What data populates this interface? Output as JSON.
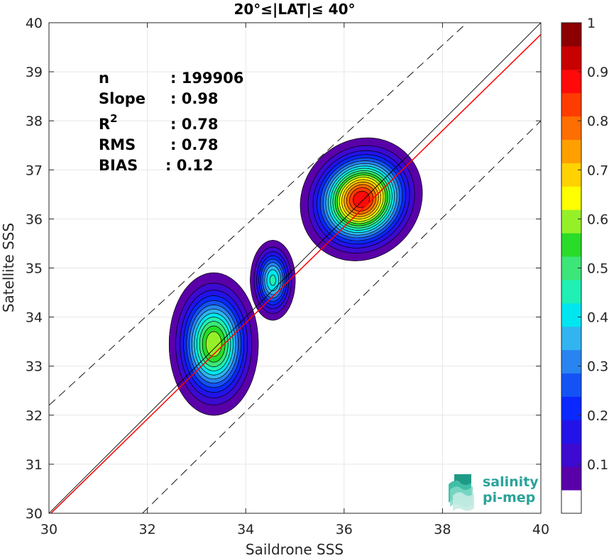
{
  "chart_data": {
    "type": "heatmap",
    "title": "20°≤|LAT|≤ 40°",
    "xlabel": "Saildrone SSS",
    "ylabel": "Satellite SSS",
    "xlim": [
      30,
      40
    ],
    "ylim": [
      30,
      40
    ],
    "xticks": [
      "30",
      "32",
      "34",
      "36",
      "38",
      "40"
    ],
    "yticks": [
      "30",
      "31",
      "32",
      "33",
      "34",
      "35",
      "36",
      "37",
      "38",
      "39",
      "40"
    ],
    "grid": true,
    "stats": [
      {
        "label": "n",
        "value": ": 199906"
      },
      {
        "label": "Slope",
        "value": ": 0.98"
      },
      {
        "label": "R",
        "sup": "2",
        "value": ": 0.78"
      },
      {
        "label": "RMS",
        "value": ": 0.78"
      },
      {
        "label": "BIAS",
        "value": ": 0.12"
      }
    ],
    "lines": [
      {
        "name": "identity",
        "color": "#000000",
        "style": "solid",
        "points": [
          [
            30,
            30
          ],
          [
            40,
            40
          ]
        ]
      },
      {
        "name": "regression",
        "color": "#ff0000",
        "style": "solid",
        "points": [
          [
            30,
            29.96
          ],
          [
            40,
            39.76
          ]
        ]
      },
      {
        "name": "upper-bound",
        "color": "#000000",
        "style": "dashed",
        "points": [
          [
            30,
            32.2
          ],
          [
            38.5,
            40.0
          ]
        ]
      },
      {
        "name": "lower-bound",
        "color": "#000000",
        "style": "dashed",
        "points": [
          [
            31.9,
            30.0
          ],
          [
            40,
            38.0
          ]
        ]
      }
    ],
    "clusters": [
      {
        "name": "low",
        "cx": 33.35,
        "cy": 33.45,
        "rx": 0.78,
        "ry": 1.25,
        "rot": 0,
        "peak": 0.65
      },
      {
        "name": "mid",
        "cx": 34.55,
        "cy": 34.75,
        "rx": 0.42,
        "ry": 0.75,
        "rot": 0,
        "peak": 0.47
      },
      {
        "name": "high",
        "cx": 36.35,
        "cy": 36.4,
        "rx": 0.95,
        "ry": 1.05,
        "rot": -42,
        "peak": 0.95
      }
    ],
    "levels": [
      0.05,
      0.1,
      0.15,
      0.2,
      0.25,
      0.3,
      0.35,
      0.4,
      0.45,
      0.5,
      0.55,
      0.6,
      0.65,
      0.7,
      0.75,
      0.8,
      0.85,
      0.9,
      0.95
    ],
    "colorbar": {
      "ticks": [
        "0.1",
        "0.2",
        "0.3",
        "0.4",
        "0.5",
        "0.6",
        "0.7",
        "0.8",
        "0.9",
        "1"
      ],
      "tick_values": [
        0.1,
        0.2,
        0.3,
        0.4,
        0.5,
        0.6,
        0.7,
        0.8,
        0.9,
        1.0
      ],
      "range": [
        0,
        1
      ],
      "colors": [
        "#ffffff",
        "#5a00a8",
        "#3c0ad0",
        "#2313e8",
        "#0a28ff",
        "#1452f5",
        "#2884f0",
        "#32b4f0",
        "#00e6f0",
        "#20f0b4",
        "#3ce678",
        "#28dc28",
        "#96f028",
        "#ffff00",
        "#ffd200",
        "#ffa000",
        "#ff6e00",
        "#ff3c00",
        "#ff0a0a",
        "#c80000",
        "#8c0000"
      ]
    }
  },
  "logo": {
    "line1": "salinity",
    "line2": "pi-mep"
  }
}
